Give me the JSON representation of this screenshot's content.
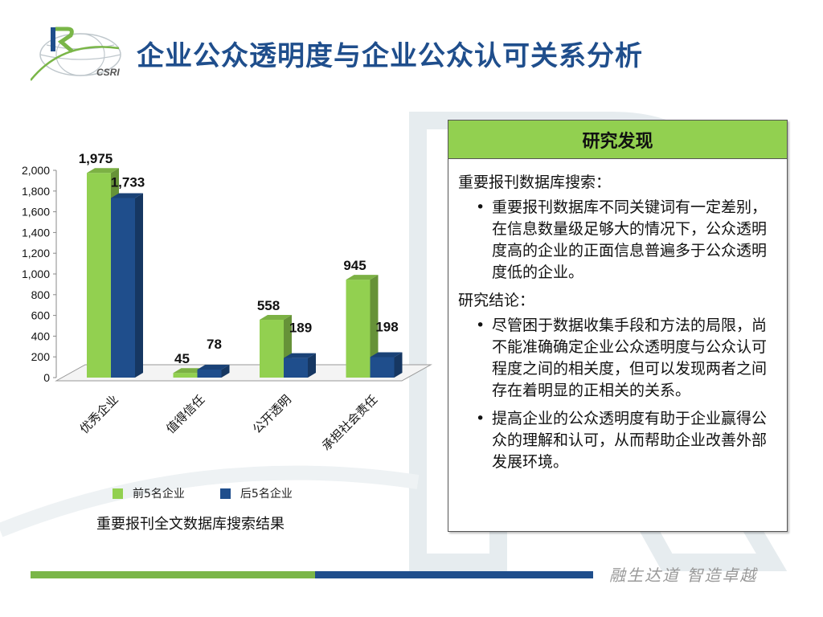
{
  "title": "企业公众透明度与企业公众认可关系分析",
  "logo": {
    "text": "CSRI"
  },
  "colors": {
    "series1": "#92d050",
    "series2": "#1f4e8c",
    "title": "#1f4e8c",
    "panel_header": "#92d050"
  },
  "chart_data": {
    "type": "bar",
    "style": "3d-clustered-column",
    "title": "",
    "caption": "重要报刊全文数据库搜索结果",
    "categories": [
      "优秀企业",
      "值得信任",
      "公开透明",
      "承担社会责任"
    ],
    "series": [
      {
        "name": "前5名企业",
        "values": [
          1975,
          45,
          558,
          945
        ],
        "labels": [
          "1,975",
          "45",
          "558",
          "945"
        ],
        "color": "#92d050"
      },
      {
        "name": "后5名企业",
        "values": [
          1733,
          78,
          189,
          198
        ],
        "labels": [
          "1,733",
          "78",
          "189",
          "198"
        ],
        "color": "#1f4e8c"
      }
    ],
    "ylim": [
      0,
      2000
    ],
    "yticks": [
      0,
      200,
      400,
      600,
      800,
      1000,
      1200,
      1400,
      1600,
      1800,
      2000
    ],
    "ytick_labels": [
      "0",
      "200",
      "400",
      "600",
      "800",
      "1,000",
      "1,200",
      "1,400",
      "1,600",
      "1,800",
      "2,000"
    ],
    "grid": false,
    "legend_position": "bottom",
    "xlabel": "",
    "ylabel": ""
  },
  "findings": {
    "header": "研究发现",
    "sections": [
      {
        "title": "重要报刊数据库搜索：",
        "bullets": [
          "重要报刊数据库不同关键词有一定差别，在信息数量级足够大的情况下，公众透明度高的企业的正面信息普遍多于公众透明度低的企业。"
        ]
      },
      {
        "title": "研究结论：",
        "bullets": [
          "尽管困于数据收集手段和方法的局限，尚不能准确确定企业公众透明度与公众认可程度之间的相关度，但可以发现两者之间存在着明显的正相关的关系。",
          "提高企业的公众透明度有助于企业赢得公众的理解和认可，从而帮助企业改善外部发展环境。"
        ]
      }
    ]
  },
  "footer": {
    "motto": "融生达道  智造卓越"
  }
}
